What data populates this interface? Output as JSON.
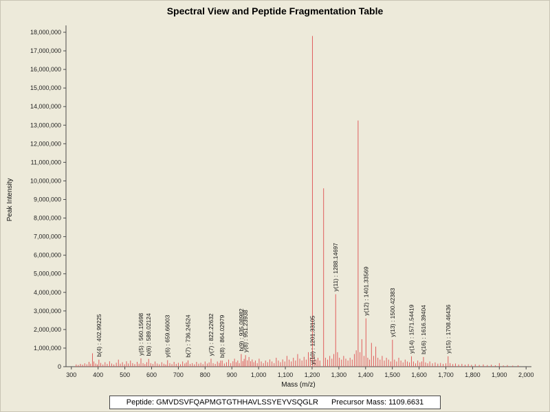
{
  "title": "Spectral View and Peptide Fragmentation Table",
  "footer": {
    "peptide": "Peptide: GMVDSVFQAPMGTGTHHAVLSSYEYVSQGLR",
    "precursor": "Precursor Mass: 1109.6631"
  },
  "chart_data": {
    "type": "bar",
    "title": "Spectral View and Peptide Fragmentation Table",
    "xlabel": "Mass (m/z)",
    "ylabel": "Peak Intensity",
    "xlim": [
      280,
      2020
    ],
    "ylim": [
      0,
      18000000
    ],
    "x_ticks": [
      300,
      400,
      500,
      600,
      700,
      800,
      900,
      1000,
      1100,
      1200,
      1300,
      1400,
      1500,
      1600,
      1700,
      1800,
      1900,
      2000
    ],
    "y_ticks": [
      0,
      1000000,
      2000000,
      3000000,
      4000000,
      5000000,
      6000000,
      7000000,
      8000000,
      9000000,
      10000000,
      11000000,
      12000000,
      13000000,
      14000000,
      15000000,
      16000000,
      17000000,
      18000000
    ],
    "bar_color": "#e05c5c",
    "grid": false,
    "legend": false,
    "annotations": [
      {
        "label": "b(4) : 402.99225",
        "mz": 402.99225,
        "intensity": 380000
      },
      {
        "label": "y(5) : 560.15698",
        "mz": 560.15698,
        "intensity": 450000
      },
      {
        "label": "b(6) : 589.02124",
        "mz": 589.02124,
        "intensity": 420000
      },
      {
        "label": "y(6) : 659.66003",
        "mz": 659.66003,
        "intensity": 350000
      },
      {
        "label": "b(7) : 736.24524",
        "mz": 736.24524,
        "intensity": 340000
      },
      {
        "label": "y(7) : 822.22632",
        "mz": 822.22632,
        "intensity": 430000
      },
      {
        "label": "b(8) : 864.02979",
        "mz": 864.02979,
        "intensity": 330000
      },
      {
        "label": "b(9) : 935.08982",
        "mz": 935.08982,
        "intensity": 680000
      },
      {
        "label": "y(8) : 951.23938",
        "mz": 951.23938,
        "intensity": 620000
      },
      {
        "label": "y(10) : 1201.33105",
        "mz": 1201.33105,
        "intensity": 17800000
      },
      {
        "label": "y(11) : 1288.14697",
        "mz": 1288.14697,
        "intensity": 3900000
      },
      {
        "label": "y(12) : 1401.33569",
        "mz": 1401.33569,
        "intensity": 2600000
      },
      {
        "label": "y(13) : 1500.42383",
        "mz": 1500.42383,
        "intensity": 1450000
      },
      {
        "label": "y(14) : 1571.54419",
        "mz": 1571.54419,
        "intensity": 560000
      },
      {
        "label": "b(16) : 1616.39404",
        "mz": 1616.39404,
        "intensity": 520000
      },
      {
        "label": "y(15) : 1708.46436",
        "mz": 1708.46436,
        "intensity": 560000
      }
    ],
    "peaks": [
      [
        318,
        120000
      ],
      [
        326,
        90000
      ],
      [
        334,
        150000
      ],
      [
        342,
        110000
      ],
      [
        350,
        180000
      ],
      [
        358,
        130000
      ],
      [
        366,
        260000
      ],
      [
        372,
        160000
      ],
      [
        379,
        720000
      ],
      [
        384,
        280000
      ],
      [
        391,
        170000
      ],
      [
        397,
        120000
      ],
      [
        410,
        200000
      ],
      [
        418,
        120000
      ],
      [
        426,
        240000
      ],
      [
        434,
        150000
      ],
      [
        443,
        290000
      ],
      [
        451,
        170000
      ],
      [
        459,
        120000
      ],
      [
        468,
        210000
      ],
      [
        476,
        380000
      ],
      [
        483,
        160000
      ],
      [
        491,
        240000
      ],
      [
        499,
        130000
      ],
      [
        506,
        290000
      ],
      [
        513,
        170000
      ],
      [
        521,
        330000
      ],
      [
        529,
        190000
      ],
      [
        537,
        140000
      ],
      [
        546,
        260000
      ],
      [
        553,
        160000
      ],
      [
        568,
        190000
      ],
      [
        575,
        140000
      ],
      [
        582,
        240000
      ],
      [
        597,
        190000
      ],
      [
        605,
        150000
      ],
      [
        613,
        280000
      ],
      [
        621,
        170000
      ],
      [
        629,
        130000
      ],
      [
        638,
        240000
      ],
      [
        646,
        160000
      ],
      [
        653,
        120000
      ],
      [
        668,
        190000
      ],
      [
        676,
        140000
      ],
      [
        684,
        260000
      ],
      [
        692,
        150000
      ],
      [
        700,
        210000
      ],
      [
        708,
        130000
      ],
      [
        716,
        280000
      ],
      [
        724,
        170000
      ],
      [
        730,
        230000
      ],
      [
        744,
        150000
      ],
      [
        752,
        190000
      ],
      [
        760,
        130000
      ],
      [
        768,
        260000
      ],
      [
        776,
        160000
      ],
      [
        784,
        210000
      ],
      [
        792,
        140000
      ],
      [
        800,
        280000
      ],
      [
        808,
        170000
      ],
      [
        815,
        230000
      ],
      [
        830,
        190000
      ],
      [
        838,
        150000
      ],
      [
        846,
        280000
      ],
      [
        853,
        200000
      ],
      [
        858,
        330000
      ],
      [
        872,
        170000
      ],
      [
        880,
        240000
      ],
      [
        888,
        380000
      ],
      [
        896,
        190000
      ],
      [
        904,
        290000
      ],
      [
        910,
        430000
      ],
      [
        916,
        240000
      ],
      [
        922,
        330000
      ],
      [
        928,
        190000
      ],
      [
        941,
        300000
      ],
      [
        946,
        420000
      ],
      [
        958,
        340000
      ],
      [
        964,
        520000
      ],
      [
        970,
        290000
      ],
      [
        976,
        390000
      ],
      [
        982,
        240000
      ],
      [
        988,
        330000
      ],
      [
        995,
        190000
      ],
      [
        1002,
        430000
      ],
      [
        1010,
        280000
      ],
      [
        1018,
        190000
      ],
      [
        1026,
        330000
      ],
      [
        1034,
        240000
      ],
      [
        1042,
        390000
      ],
      [
        1050,
        280000
      ],
      [
        1058,
        190000
      ],
      [
        1066,
        480000
      ],
      [
        1074,
        330000
      ],
      [
        1082,
        240000
      ],
      [
        1090,
        390000
      ],
      [
        1098,
        280000
      ],
      [
        1106,
        580000
      ],
      [
        1114,
        380000
      ],
      [
        1122,
        280000
      ],
      [
        1130,
        480000
      ],
      [
        1138,
        330000
      ],
      [
        1146,
        680000
      ],
      [
        1154,
        430000
      ],
      [
        1162,
        330000
      ],
      [
        1170,
        530000
      ],
      [
        1178,
        380000
      ],
      [
        1186,
        780000
      ],
      [
        1193,
        480000
      ],
      [
        1208,
        580000
      ],
      [
        1215,
        380000
      ],
      [
        1222,
        480000
      ],
      [
        1229,
        330000
      ],
      [
        1243,
        9600000
      ],
      [
        1250,
        480000
      ],
      [
        1258,
        380000
      ],
      [
        1266,
        580000
      ],
      [
        1274,
        430000
      ],
      [
        1281,
        680000
      ],
      [
        1295,
        780000
      ],
      [
        1302,
        480000
      ],
      [
        1310,
        380000
      ],
      [
        1318,
        580000
      ],
      [
        1326,
        430000
      ],
      [
        1334,
        330000
      ],
      [
        1342,
        480000
      ],
      [
        1350,
        380000
      ],
      [
        1358,
        680000
      ],
      [
        1365,
        880000
      ],
      [
        1372,
        13250000
      ],
      [
        1379,
        780000
      ],
      [
        1386,
        1480000
      ],
      [
        1394,
        580000
      ],
      [
        1408,
        480000
      ],
      [
        1415,
        380000
      ],
      [
        1422,
        1280000
      ],
      [
        1430,
        580000
      ],
      [
        1438,
        1080000
      ],
      [
        1446,
        480000
      ],
      [
        1454,
        380000
      ],
      [
        1462,
        580000
      ],
      [
        1470,
        330000
      ],
      [
        1478,
        480000
      ],
      [
        1486,
        380000
      ],
      [
        1494,
        280000
      ],
      [
        1508,
        380000
      ],
      [
        1516,
        280000
      ],
      [
        1524,
        480000
      ],
      [
        1532,
        330000
      ],
      [
        1540,
        230000
      ],
      [
        1548,
        380000
      ],
      [
        1556,
        280000
      ],
      [
        1564,
        230000
      ],
      [
        1579,
        280000
      ],
      [
        1587,
        180000
      ],
      [
        1595,
        330000
      ],
      [
        1603,
        230000
      ],
      [
        1610,
        280000
      ],
      [
        1624,
        230000
      ],
      [
        1632,
        180000
      ],
      [
        1640,
        280000
      ],
      [
        1650,
        180000
      ],
      [
        1660,
        230000
      ],
      [
        1670,
        160000
      ],
      [
        1680,
        200000
      ],
      [
        1690,
        150000
      ],
      [
        1700,
        180000
      ],
      [
        1716,
        190000
      ],
      [
        1726,
        140000
      ],
      [
        1736,
        170000
      ],
      [
        1748,
        120000
      ],
      [
        1760,
        150000
      ],
      [
        1772,
        110000
      ],
      [
        1784,
        140000
      ],
      [
        1796,
        100000
      ],
      [
        1810,
        130000
      ],
      [
        1825,
        95000
      ],
      [
        1840,
        120000
      ],
      [
        1855,
        85000
      ],
      [
        1870,
        110000
      ],
      [
        1885,
        75000
      ],
      [
        1900,
        190000
      ],
      [
        1915,
        65000
      ],
      [
        1930,
        85000
      ],
      [
        1950,
        60000
      ],
      [
        1970,
        75000
      ]
    ]
  }
}
